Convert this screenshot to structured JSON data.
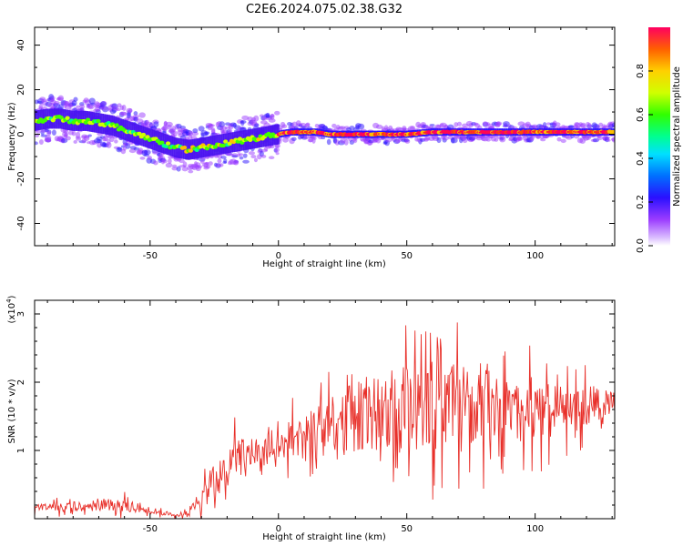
{
  "title": "C2E6.2024.075.02.38.G32",
  "chart_data": [
    {
      "type": "heatmap",
      "xlabel": "Height of straight line (km)",
      "ylabel": "Frequency (Hz)",
      "xlim": [
        -95,
        131
      ],
      "ylim": [
        -50,
        48
      ],
      "xticks": [
        -50,
        0,
        50,
        100
      ],
      "yticks": [
        -40,
        -20,
        0,
        20,
        40
      ],
      "ridge": {
        "x": [
          -95,
          -90,
          -85,
          -80,
          -75,
          -70,
          -65,
          -60,
          -55,
          -50,
          -45,
          -40,
          -35,
          -30,
          -25,
          -20,
          -15,
          -10,
          -5,
          0,
          5,
          10,
          15,
          20,
          30,
          40,
          50,
          60,
          70,
          80,
          90,
          100,
          110,
          120,
          131
        ],
        "freq": [
          6,
          7,
          7,
          6,
          6,
          5,
          4,
          2,
          0,
          -2,
          -4,
          -6,
          -7,
          -6,
          -5,
          -4,
          -3,
          -2,
          -1,
          0,
          1,
          1,
          1,
          0,
          0,
          0,
          0,
          1,
          1,
          1,
          1,
          1,
          1,
          1,
          1
        ]
      },
      "colorbar": {
        "label": "Normalized spectral amplitude",
        "range": [
          0,
          1
        ],
        "ticks": [
          "0.0",
          "0.2",
          "0.4",
          "0.6",
          "0.8"
        ]
      }
    },
    {
      "type": "line",
      "xlabel": "Height of straight line (km)",
      "ylabel": "SNR (10 * v/v)",
      "yscale_label": "(x10",
      "yscale_exp": "4",
      "xlim": [
        -95,
        131
      ],
      "ylim": [
        0,
        32000
      ],
      "xticks": [
        -50,
        0,
        50,
        100
      ],
      "yticks": [
        10000,
        20000,
        30000
      ],
      "ytick_labels": [
        "1",
        "2",
        "3"
      ],
      "series": [
        {
          "color": "#e8302a",
          "envelope": {
            "x": [
              -95,
              -80,
              -60,
              -45,
              -35,
              -30,
              -25,
              -20,
              -15,
              -10,
              -5,
              0,
              5,
              10,
              20,
              30,
              40,
              50,
              60,
              70,
              80,
              90,
              100,
              110,
              120,
              131
            ],
            "mean": [
              1500,
              1800,
              2000,
              800,
              600,
              3000,
              5500,
              7500,
              8500,
              9500,
              10000,
              11000,
              11500,
              12000,
              13000,
              15000,
              16000,
              16000,
              16500,
              17000,
              17000,
              16500,
              16000,
              15500,
              16000,
              17500
            ],
            "spread": [
              900,
              1200,
              1500,
              500,
              600,
              3000,
              4000,
              5000,
              5500,
              4000,
              3500,
              4000,
              5000,
              6000,
              8000,
              9000,
              10000,
              10500,
              11000,
              11000,
              10000,
              9000,
              8000,
              6000,
              5000,
              3000
            ]
          }
        }
      ]
    }
  ]
}
